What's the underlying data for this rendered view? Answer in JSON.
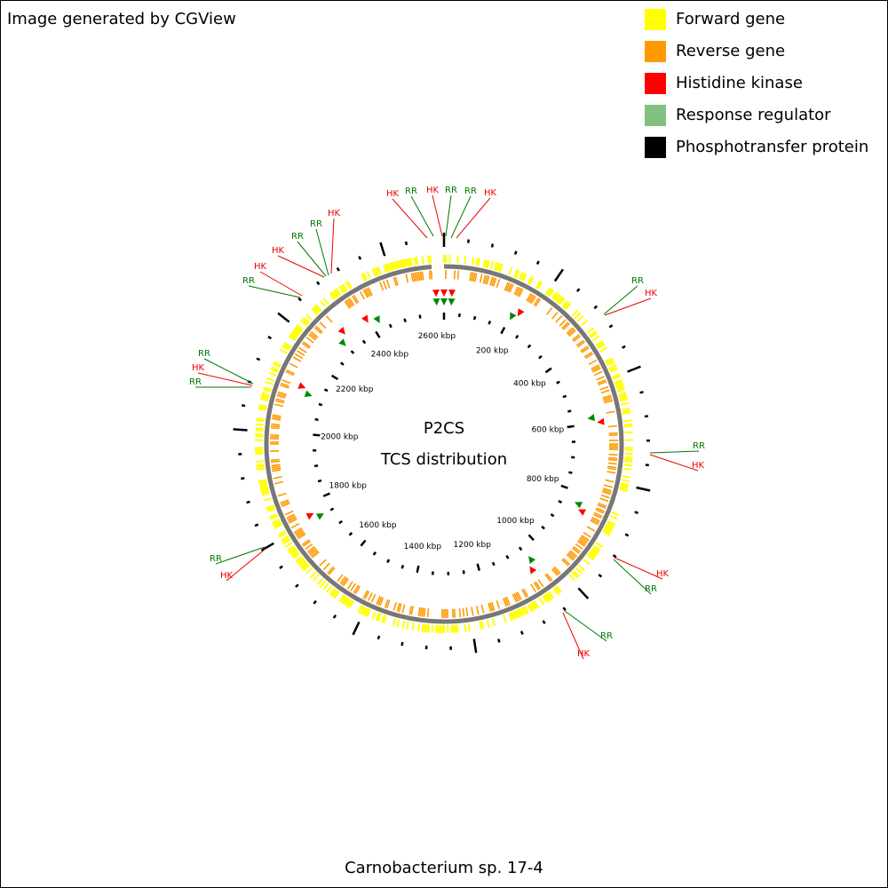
{
  "header": {
    "credit": "Image generated by CGView"
  },
  "legend": [
    {
      "label": "Forward gene",
      "color": "#ffff00"
    },
    {
      "label": "Reverse gene",
      "color": "#ff9900"
    },
    {
      "label": "Histidine kinase",
      "color": "#ff0000"
    },
    {
      "label": "Response regulator",
      "color": "#80c080"
    },
    {
      "label": "Phosphotransfer protein",
      "color": "#000000"
    }
  ],
  "center": {
    "title": "P2CS",
    "subtitle": "TCS distribution"
  },
  "ticks": [
    "200 kbp",
    "400 kbp",
    "600 kbp",
    "800 kbp",
    "1000 kbp",
    "1200 kbp",
    "1400 kbp",
    "1600 kbp",
    "1800 kbp",
    "2000 kbp",
    "2200 kbp",
    "2400 kbp",
    "2600 kbp"
  ],
  "features": [
    "HK",
    "RR",
    "HK",
    "RR",
    "RR",
    "HK",
    "HK",
    "RR",
    "RR",
    "HK",
    "HK",
    "RR",
    "RR",
    "HK",
    "RR",
    "RR",
    "HK",
    "RR",
    "HK",
    "HK",
    "RR",
    "RR",
    "HK",
    "RR",
    "HK"
  ],
  "footer": "Carnobacterium sp. 17-4"
}
